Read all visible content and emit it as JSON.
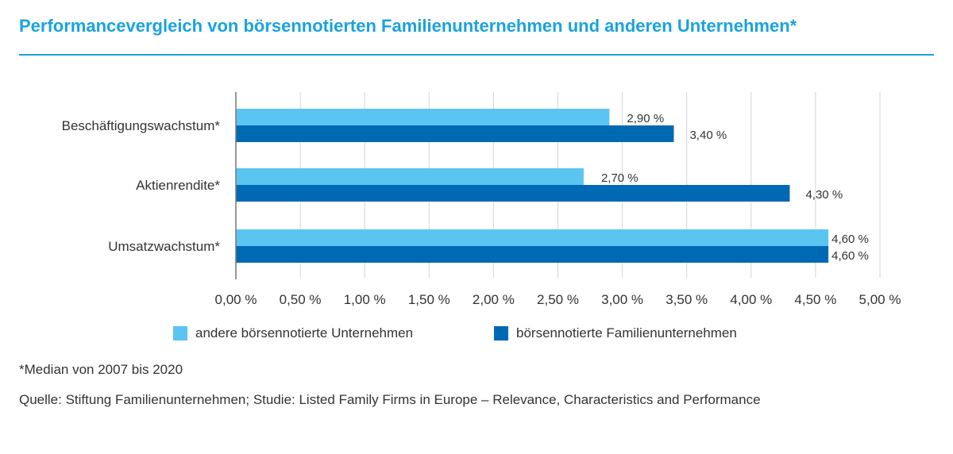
{
  "title": "Performancevergleich von börsennotierten Familienunternehmen und anderen Unternehmen*",
  "colors": {
    "accent": "#1aa3dd",
    "series_light": "#5bc5f2",
    "series_dark": "#0069b4",
    "grid": "#d6d6d6",
    "axis": "#777777"
  },
  "chart_data": {
    "type": "bar",
    "orientation": "horizontal",
    "categories": [
      "Beschäftigungswachstum*",
      "Aktienrendite*",
      "Umsatzwachstum*"
    ],
    "series": [
      {
        "name": "andere börsennotierte Unternehmen",
        "values": [
          2.9,
          2.7,
          4.6
        ],
        "labels": [
          "2,90 %",
          "2,70 %",
          "4,60 %"
        ]
      },
      {
        "name": "börsennotierte Familienunternehmen",
        "values": [
          3.4,
          4.3,
          4.6
        ],
        "labels": [
          "3,40 %",
          "4,30 %",
          "4,60 %"
        ]
      }
    ],
    "xlim": [
      0,
      5
    ],
    "xticks": [
      0,
      0.5,
      1,
      1.5,
      2,
      2.5,
      3,
      3.5,
      4,
      4.5,
      5
    ],
    "xtick_labels": [
      "0,00 %",
      "0,50 %",
      "1,00 %",
      "1,50 %",
      "2,00 %",
      "2,50 %",
      "3,00 %",
      "3,50 %",
      "4,00 %",
      "4,50 %",
      "5,00 %"
    ],
    "grid": "vertical",
    "legend_position": "bottom"
  },
  "footnotes": {
    "median": "*Median von 2007 bis 2020",
    "source": "Quelle: Stiftung Familienunternehmen; Studie: Listed Family Firms in Europe – Relevance, Characteristics and Performance"
  }
}
